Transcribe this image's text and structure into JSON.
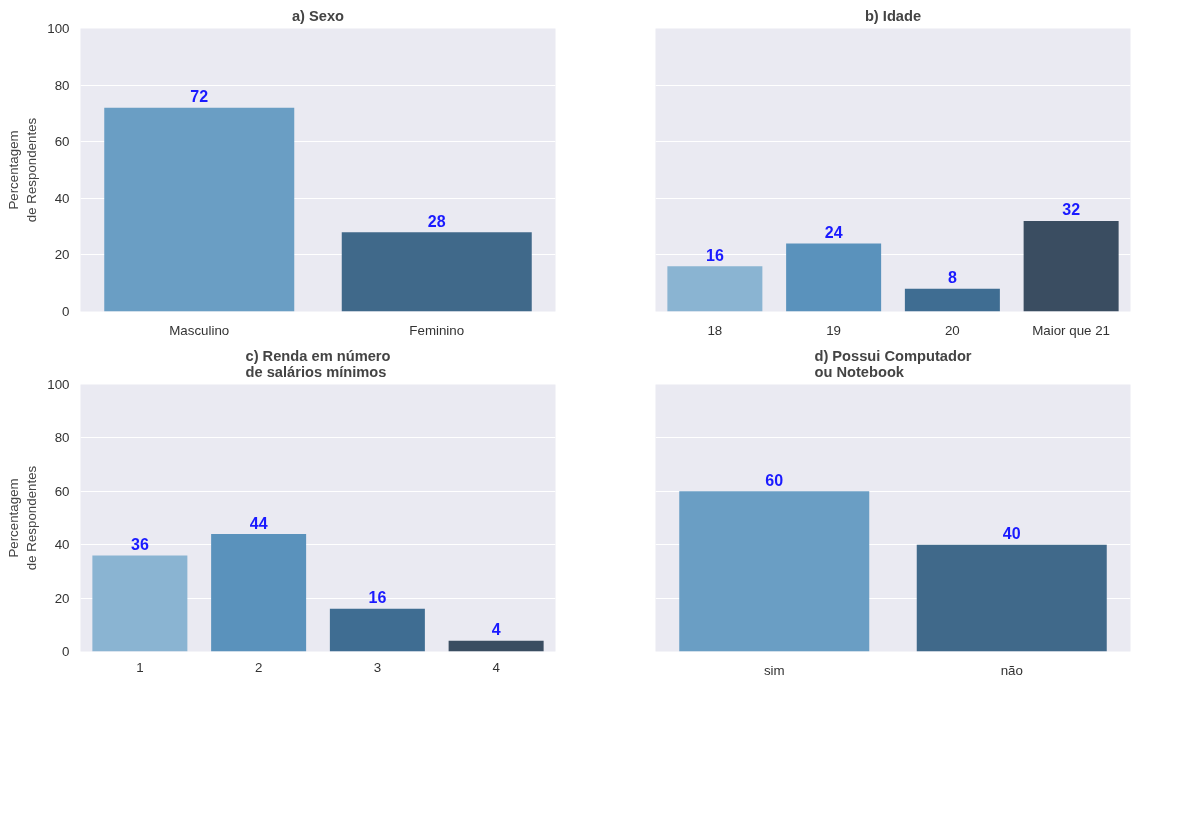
{
  "chart_data": [
    {
      "type": "bar",
      "title": "a) Sexo",
      "ylabel": "Percentagem\nde Respondentes",
      "categories": [
        "Masculino",
        "Feminino"
      ],
      "values": [
        72,
        28
      ],
      "colors": [
        "#6a9ec4",
        "#40698a"
      ],
      "ylim": [
        0,
        100
      ],
      "yticks": [
        0,
        20,
        40,
        60,
        80,
        100
      ],
      "grid": "y",
      "data_labels": true
    },
    {
      "type": "bar",
      "title": "b) Idade",
      "categories": [
        "18",
        "19",
        "20",
        "Maior que 21"
      ],
      "values": [
        16,
        24,
        8,
        32
      ],
      "colors": [
        "#8ab4d2",
        "#5a92bc",
        "#3f6d92",
        "#3a4d61"
      ],
      "ylim": [
        0,
        100
      ],
      "yticks": [
        0,
        20,
        40,
        60,
        80,
        100
      ],
      "grid": "y",
      "data_labels": true,
      "tick_labels": "x"
    },
    {
      "type": "bar",
      "title": "c) Renda em número\nde salários mínimos",
      "ylabel": "Percentagem\nde Respondentes",
      "categories": [
        "1",
        "2",
        "3",
        "4"
      ],
      "values": [
        36,
        44,
        16,
        4
      ],
      "colors": [
        "#8ab4d2",
        "#5a92bc",
        "#3f6d92",
        "#3a4d61"
      ],
      "ylim": [
        0,
        100
      ],
      "yticks": [
        0,
        20,
        40,
        60,
        80,
        100
      ],
      "grid": "y",
      "data_labels": true
    },
    {
      "type": "bar",
      "title": "d) Possui Computador\nou Notebook",
      "categories": [
        "sim",
        "não"
      ],
      "values": [
        60,
        40
      ],
      "colors": [
        "#6a9ec4",
        "#40698a"
      ],
      "ylim": [
        0,
        100
      ],
      "yticks": [
        0,
        20,
        40,
        60,
        80,
        100
      ],
      "grid": "y",
      "data_labels": true,
      "tick_labels": "x"
    }
  ]
}
